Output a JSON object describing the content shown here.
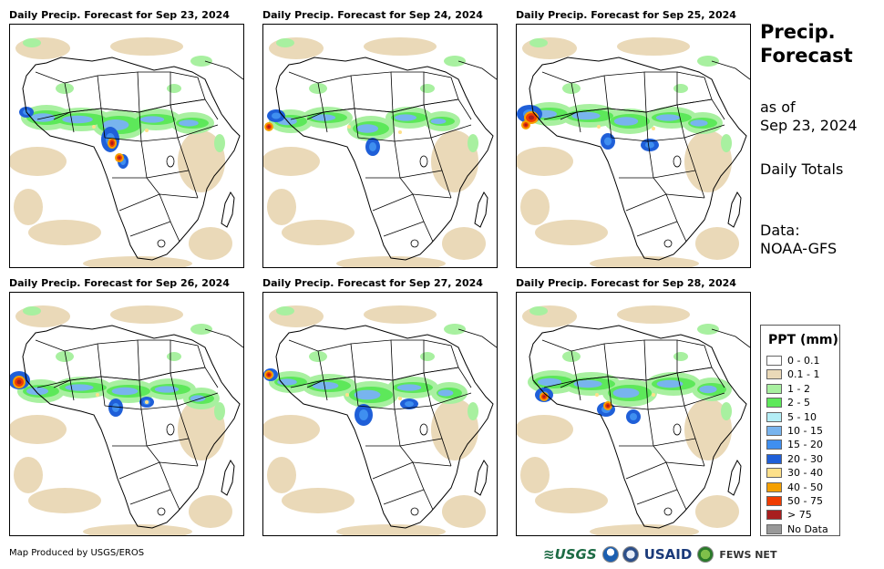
{
  "panels": [
    {
      "title": "Daily Precip. Forecast for Sep 23, 2024"
    },
    {
      "title": "Daily Precip. Forecast for Sep 24, 2024"
    },
    {
      "title": "Daily Precip. Forecast for Sep 25, 2024"
    },
    {
      "title": "Daily Precip. Forecast for Sep 26, 2024"
    },
    {
      "title": "Daily Precip. Forecast for Sep 27, 2024"
    },
    {
      "title": "Daily Precip. Forecast for Sep 28, 2024"
    }
  ],
  "side": {
    "title_line1": "Precip.",
    "title_line2": "Forecast",
    "asof_line1": "as of",
    "asof_line2": "Sep 23, 2024",
    "totals": "Daily Totals",
    "data_line1": "Data:",
    "data_line2": "NOAA-GFS"
  },
  "legend": {
    "title": "PPT (mm)",
    "items": [
      {
        "label": "0 - 0.1",
        "color": "#ffffff"
      },
      {
        "label": "0.1 - 1",
        "color": "#ead9b8"
      },
      {
        "label": "1 - 2",
        "color": "#a8f0a0"
      },
      {
        "label": "2 - 5",
        "color": "#5de85a"
      },
      {
        "label": "5 - 10",
        "color": "#b4eef6"
      },
      {
        "label": "10 - 15",
        "color": "#78b4ee"
      },
      {
        "label": "15 - 20",
        "color": "#3f8ff0"
      },
      {
        "label": "20 - 30",
        "color": "#1f5fd8"
      },
      {
        "label": "30 - 40",
        "color": "#fde08a"
      },
      {
        "label": "40 - 50",
        "color": "#f5a000"
      },
      {
        "label": "50 - 75",
        "color": "#f03c00"
      },
      {
        "label": "> 75",
        "color": "#a81e1e"
      },
      {
        "label": "No Data",
        "color": "#999999"
      }
    ]
  },
  "footer": {
    "credit": "Map Produced by USGS/EROS",
    "logo_usgs": "USGS",
    "logo_usaid": "USAID",
    "logo_fews": "FEWS NET"
  }
}
